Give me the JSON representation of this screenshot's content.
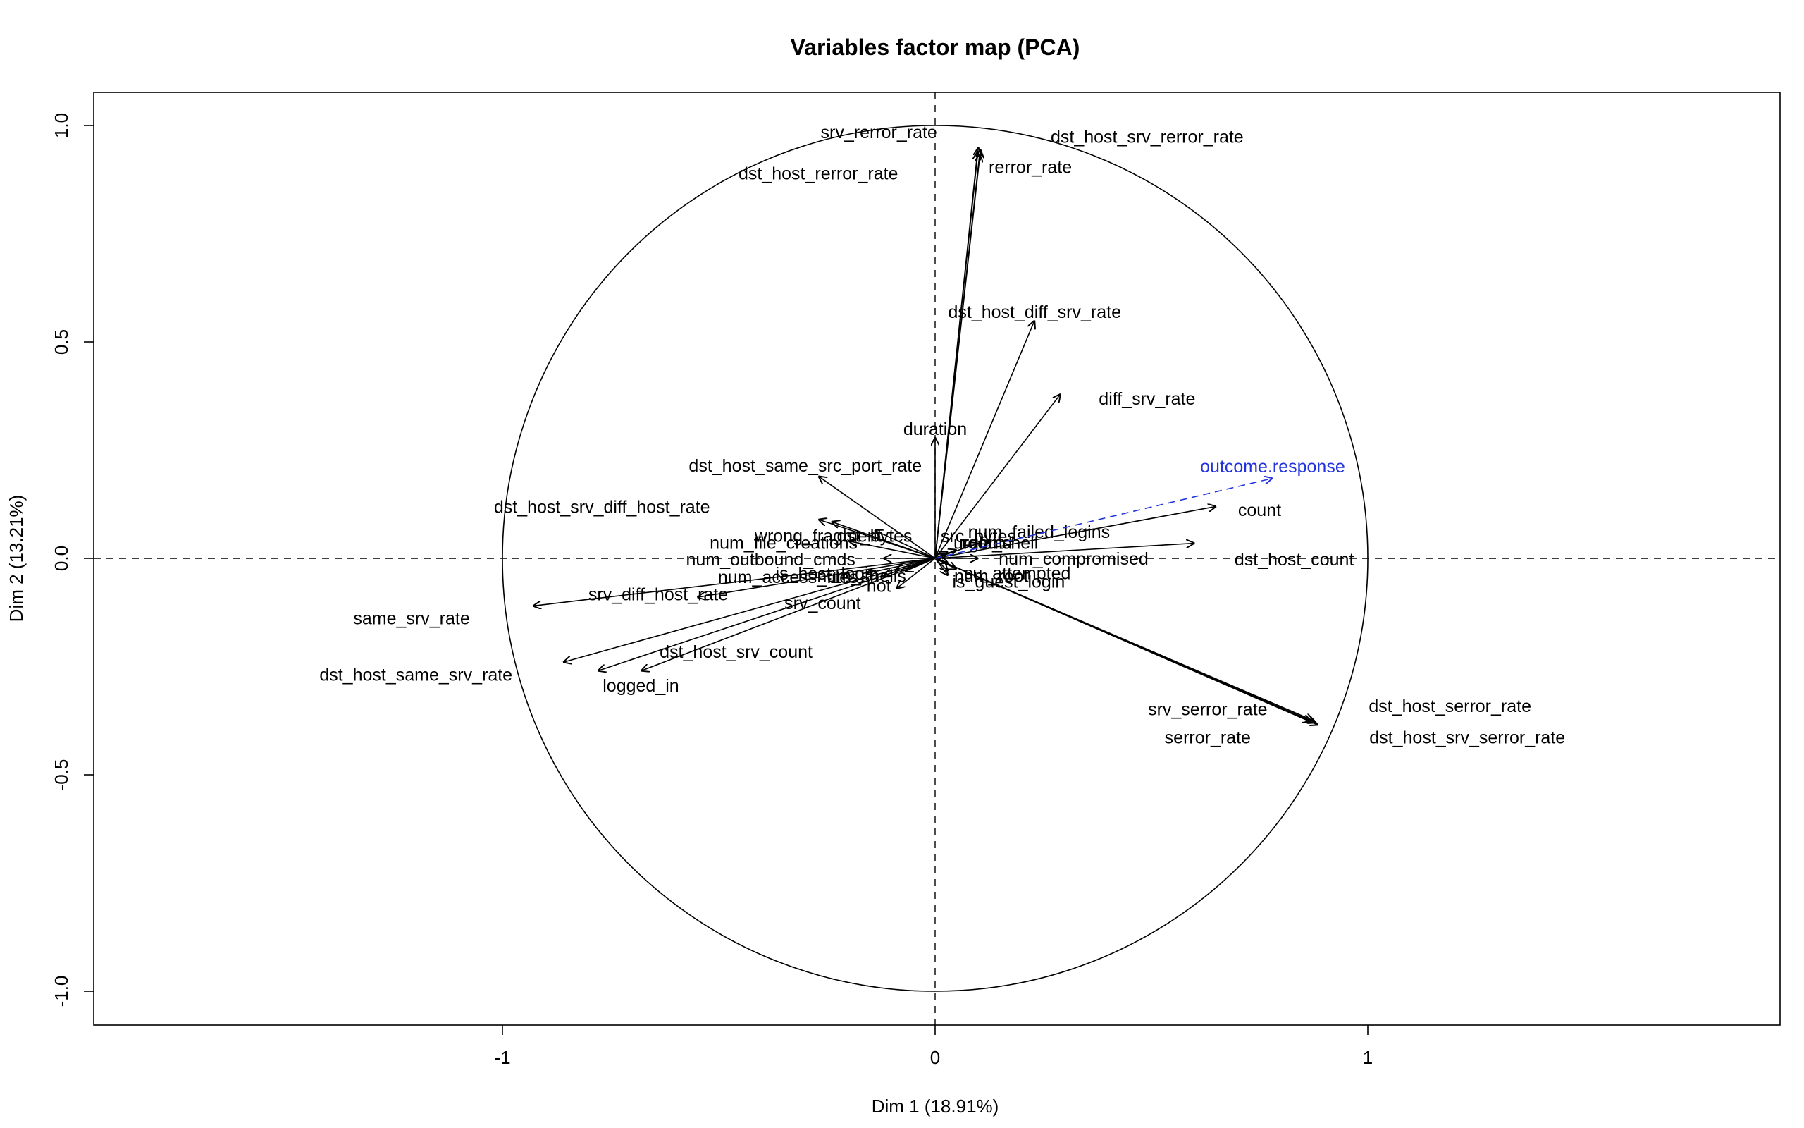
{
  "chart_data": {
    "type": "scatter",
    "subtype": "pca-correlation-circle",
    "title": "Variables factor map (PCA)",
    "xlabel": "Dim 1 (18.91%)",
    "ylabel": "Dim 2 (13.21%)",
    "xlim": [
      -1.95,
      1.95
    ],
    "ylim": [
      -1.08,
      1.08
    ],
    "x_ticks": [
      -1,
      0,
      1
    ],
    "y_ticks": [
      -1.0,
      -0.5,
      0.0,
      0.5,
      1.0
    ],
    "x_tick_labels": [
      "-1",
      "0",
      "1"
    ],
    "y_tick_labels": [
      "-1.0",
      "-0.5",
      "0.0",
      "0.5",
      "1.0"
    ],
    "unit_circle": true,
    "reference_lines": [
      0,
      0
    ],
    "grid": false,
    "legend": "none",
    "colors": {
      "active": "#000000",
      "supplementary": "#2233dd"
    },
    "variables": [
      {
        "name": "srv_rerror_rate",
        "x": 0.1,
        "y": 0.95,
        "lx": -0.13,
        "ly": 0.985
      },
      {
        "name": "dst_host_srv_rerror_rate",
        "x": 0.105,
        "y": 0.945,
        "lx": 0.49,
        "ly": 0.975
      },
      {
        "name": "dst_host_rerror_rate",
        "x": 0.098,
        "y": 0.94,
        "lx": -0.27,
        "ly": 0.89
      },
      {
        "name": "rerror_rate",
        "x": 0.103,
        "y": 0.935,
        "lx": 0.22,
        "ly": 0.905
      },
      {
        "name": "dst_host_diff_srv_rate",
        "x": 0.23,
        "y": 0.55,
        "lx": 0.23,
        "ly": 0.57
      },
      {
        "name": "diff_srv_rate",
        "x": 0.29,
        "y": 0.38,
        "lx": 0.49,
        "ly": 0.37
      },
      {
        "name": "duration",
        "x": 0.0,
        "y": 0.28,
        "lx": 0.0,
        "ly": 0.3
      },
      {
        "name": "dst_host_same_src_port_rate",
        "x": -0.27,
        "y": 0.19,
        "lx": -0.3,
        "ly": 0.215
      },
      {
        "name": "dst_host_srv_diff_host_rate",
        "x": -0.27,
        "y": 0.09,
        "lx": -0.77,
        "ly": 0.12
      },
      {
        "name": "count",
        "x": 0.65,
        "y": 0.12,
        "lx": 0.75,
        "ly": 0.112
      },
      {
        "name": "dst_host_count",
        "x": 0.6,
        "y": 0.035,
        "lx": 0.83,
        "ly": -0.002
      },
      {
        "name": "dst_host_serror_rate",
        "x": 0.88,
        "y": -0.38,
        "lx": 1.19,
        "ly": -0.34
      },
      {
        "name": "dst_host_srv_serror_rate",
        "x": 0.885,
        "y": -0.385,
        "lx": 1.23,
        "ly": -0.413
      },
      {
        "name": "srv_serror_rate",
        "x": 0.875,
        "y": -0.375,
        "lx": 0.63,
        "ly": -0.348
      },
      {
        "name": "serror_rate",
        "x": 0.87,
        "y": -0.378,
        "lx": 0.63,
        "ly": -0.413
      },
      {
        "name": "same_srv_rate",
        "x": -0.86,
        "y": -0.24,
        "lx": -1.21,
        "ly": -0.138
      },
      {
        "name": "dst_host_same_srv_rate",
        "x": -0.78,
        "y": -0.26,
        "lx": -1.2,
        "ly": -0.268
      },
      {
        "name": "srv_diff_host_rate",
        "x": -0.93,
        "y": -0.11,
        "lx": -0.64,
        "ly": -0.082
      },
      {
        "name": "logged_in",
        "x": -0.68,
        "y": -0.26,
        "lx": -0.68,
        "ly": -0.293
      },
      {
        "name": "dst_host_srv_count",
        "x": -0.55,
        "y": -0.09,
        "lx": -0.46,
        "ly": -0.215
      },
      {
        "name": "srv_count",
        "x": -0.12,
        "y": -0.04,
        "lx": -0.26,
        "ly": -0.103
      },
      {
        "name": "wrong_fragment",
        "x": -0.24,
        "y": 0.085,
        "lx": -0.27,
        "ly": 0.053
      },
      {
        "name": "dst_bytes",
        "x": -0.14,
        "y": 0.065,
        "lx": -0.14,
        "ly": 0.053
      },
      {
        "name": "num_file_creations",
        "x": -0.2,
        "y": 0.04,
        "lx": -0.35,
        "ly": 0.037
      },
      {
        "name": "num_outbound_cmds",
        "x": -0.12,
        "y": 0.0,
        "lx": -0.38,
        "ly": -0.002
      },
      {
        "name": "num_access_files",
        "x": -0.16,
        "y": -0.035,
        "lx": -0.34,
        "ly": -0.042
      },
      {
        "name": "is_host_login",
        "x": -0.09,
        "y": -0.025,
        "lx": -0.25,
        "ly": -0.034
      },
      {
        "name": "num_shells",
        "x": -0.07,
        "y": -0.03,
        "lx": -0.17,
        "ly": -0.04
      },
      {
        "name": "hot",
        "x": -0.09,
        "y": -0.07,
        "lx": -0.13,
        "ly": -0.063
      },
      {
        "name": "num_failed_logins",
        "x": 0.1,
        "y": 0.035,
        "lx": 0.24,
        "ly": 0.062
      },
      {
        "name": "src_bytes",
        "x": 0.05,
        "y": 0.02,
        "lx": 0.1,
        "ly": 0.052
      },
      {
        "name": "urgent",
        "x": 0.03,
        "y": 0.015,
        "lx": 0.1,
        "ly": 0.037
      },
      {
        "name": "land",
        "x": 0.02,
        "y": 0.01,
        "lx": 0.14,
        "ly": 0.037
      },
      {
        "name": "root_shell",
        "x": 0.03,
        "y": -0.01,
        "lx": 0.15,
        "ly": 0.037
      },
      {
        "name": "num_compromised",
        "x": 0.1,
        "y": 0.0,
        "lx": 0.32,
        "ly": 0.0
      },
      {
        "name": "su_attempted",
        "x": 0.05,
        "y": -0.025,
        "lx": 0.19,
        "ly": -0.033
      },
      {
        "name": "num_root",
        "x": 0.03,
        "y": -0.03,
        "lx": 0.13,
        "ly": -0.04
      },
      {
        "name": "num_file_creations_",
        "x": 0.0,
        "y": 0.0,
        "lx": 0.0,
        "ly": 0.0,
        "hidden": true
      },
      {
        "name": "is_guest_login",
        "x": 0.03,
        "y": -0.04,
        "lx": 0.17,
        "ly": -0.053
      }
    ],
    "supplementary": [
      {
        "name": "outcome.response",
        "x": 0.78,
        "y": 0.185,
        "lx": 0.78,
        "ly": 0.213
      }
    ]
  }
}
